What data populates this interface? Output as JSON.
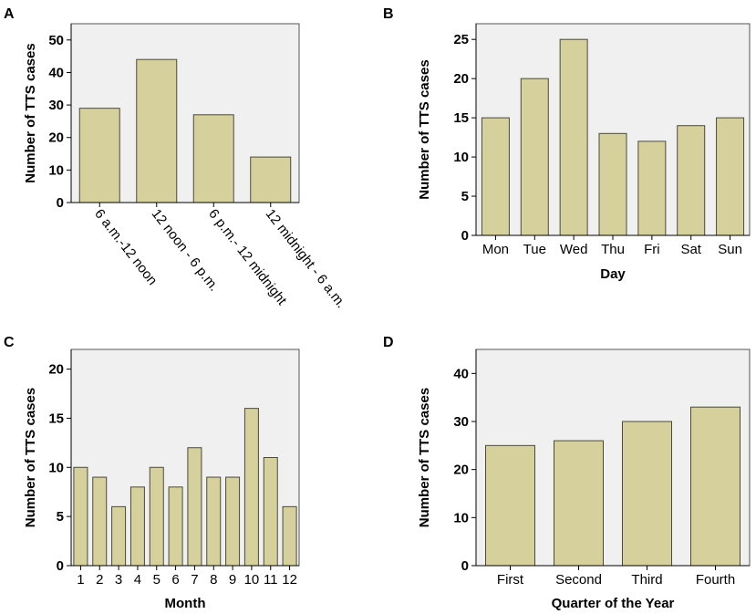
{
  "chart_data": [
    {
      "panel": "A",
      "type": "bar",
      "title": "",
      "xlabel": "",
      "ylabel": "Number of TTS cases",
      "ylim": [
        0,
        55
      ],
      "yticks": [
        0,
        10,
        20,
        30,
        40,
        50
      ],
      "categories": [
        "6 a.m.-12 noon",
        "12 noon - 6 p.m.",
        "6 p.m.- 12 midnight",
        "12 midnight - 6 a.m."
      ],
      "values": [
        29,
        44,
        27,
        14
      ],
      "grid": false
    },
    {
      "panel": "B",
      "type": "bar",
      "title": "",
      "xlabel": "Day",
      "ylabel": "Number of TTS cases",
      "ylim": [
        0,
        27
      ],
      "yticks": [
        0,
        5,
        10,
        15,
        20,
        25
      ],
      "categories": [
        "Mon",
        "Tue",
        "Wed",
        "Thu",
        "Fri",
        "Sat",
        "Sun"
      ],
      "values": [
        15,
        20,
        25,
        13,
        12,
        14,
        15
      ],
      "grid": false
    },
    {
      "panel": "C",
      "type": "bar",
      "title": "",
      "xlabel": "Month",
      "ylabel": "Number of TTS cases",
      "ylim": [
        0,
        22
      ],
      "yticks": [
        0,
        5,
        10,
        15,
        20
      ],
      "categories": [
        "1",
        "2",
        "3",
        "4",
        "5",
        "6",
        "7",
        "8",
        "9",
        "10",
        "11",
        "12"
      ],
      "values": [
        10,
        9,
        6,
        8,
        10,
        8,
        12,
        9,
        9,
        16,
        11,
        6
      ],
      "grid": false
    },
    {
      "panel": "D",
      "type": "bar",
      "title": "",
      "xlabel": "Quarter of the Year",
      "ylabel": "Number of TTS cases",
      "ylim": [
        0,
        45
      ],
      "yticks": [
        0,
        10,
        20,
        30,
        40
      ],
      "categories": [
        "First",
        "Second",
        "Third",
        "Fourth"
      ],
      "values": [
        25,
        26,
        30,
        33
      ],
      "grid": false
    }
  ],
  "colors": {
    "bar_fill": "#d6d09c",
    "bar_stroke": "#4a4a3a",
    "plot_bg": "#f0f0f0"
  }
}
